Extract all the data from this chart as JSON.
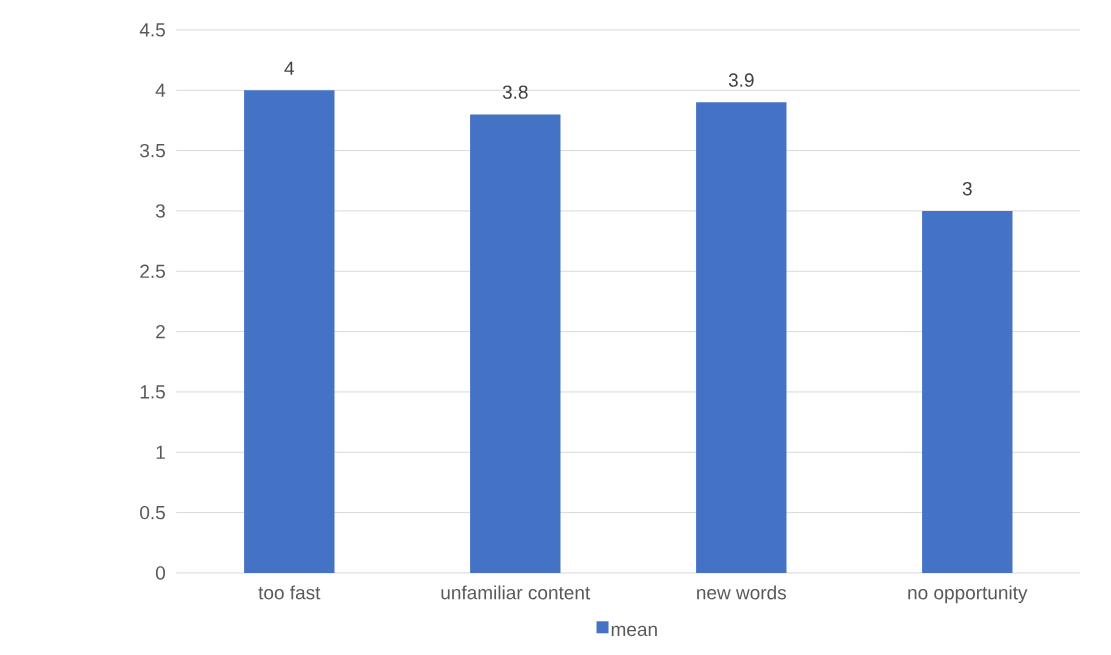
{
  "chart_data": {
    "type": "bar",
    "categories": [
      "too fast",
      "unfamiliar content",
      "new words",
      "no opportunity"
    ],
    "series": [
      {
        "name": "mean",
        "color": "#4472c4",
        "values": [
          4,
          3.8,
          3.9,
          3
        ]
      }
    ],
    "ylim": [
      0,
      4.5
    ],
    "yticks": [
      0,
      0.5,
      1,
      1.5,
      2,
      2.5,
      3,
      3.5,
      4,
      4.5
    ],
    "grid": "y",
    "legend": "bottom",
    "data_labels": true
  }
}
